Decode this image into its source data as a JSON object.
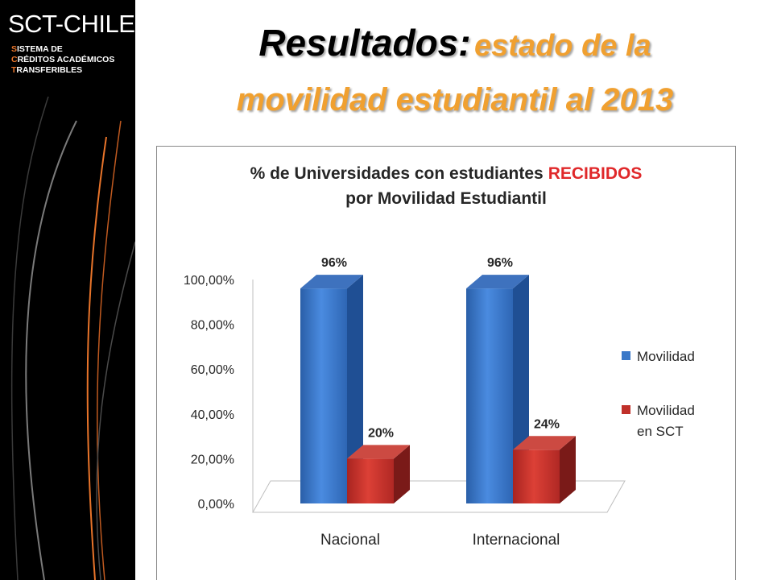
{
  "logo": {
    "main_part1": "SCT",
    "main_part2": "-CHILE",
    "lines": [
      {
        "initial": "S",
        "rest": "ISTEMA DE"
      },
      {
        "initial": "C",
        "rest": "RÉDITOS ACADÉMICOS"
      },
      {
        "initial": "T",
        "rest": "RANSFERIBLES"
      }
    ]
  },
  "slide": {
    "title_part1": "Resultados:",
    "title_part2": "estado de la",
    "title_line2": "movilidad estudiantil al 2013"
  },
  "colors": {
    "accent_orange": "#f0a030",
    "logo_orange": "#e8742a",
    "series_blue": "#3a78c8",
    "series_red": "#c0302a",
    "highlight_red": "#e0282a"
  },
  "chart_data": {
    "type": "bar",
    "title_part1": "% de Universidades con estudiantes",
    "title_highlight": "RECIBIDOS",
    "title_line2": "por Movilidad Estudiantil",
    "categories": [
      "Nacional",
      "Internacional"
    ],
    "series": [
      {
        "name": "Movilidad",
        "values": [
          96,
          96
        ],
        "labels": [
          "96%",
          "96%"
        ],
        "color": "#3a78c8"
      },
      {
        "name": "Movilidad en SCT",
        "values": [
          20,
          24
        ],
        "labels": [
          "20%",
          "24%"
        ],
        "color": "#c0302a"
      }
    ],
    "ylim": [
      0,
      100
    ],
    "yticks": [
      "0,00%",
      "20,00%",
      "40,00%",
      "60,00%",
      "80,00%",
      "100,00%"
    ],
    "legend_position": "right",
    "grid": false,
    "three_d": true
  }
}
